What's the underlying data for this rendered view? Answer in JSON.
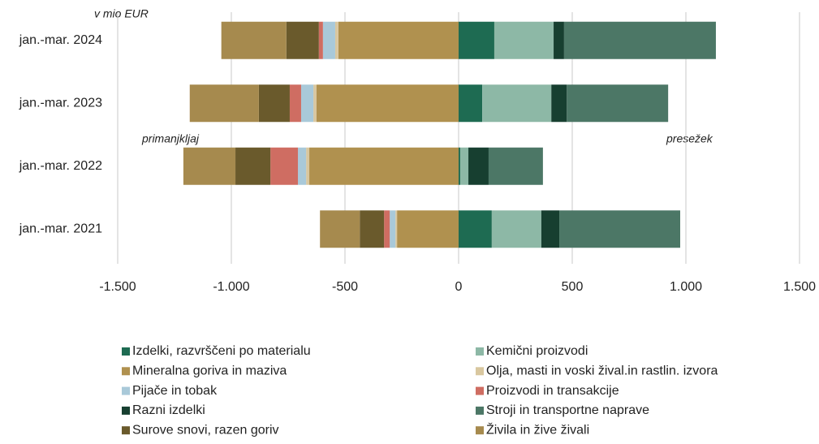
{
  "chart_data": {
    "type": "diverging_bar",
    "unit_label": "v mio EUR",
    "annotations": [
      "primanjkljaj",
      "presežek"
    ],
    "categories": [
      "jan.-mar. 2024",
      "jan.-mar. 2023",
      "jan.-mar. 2022",
      "jan.-mar. 2021"
    ],
    "series": [
      {
        "name": "Izdelki, razvrščeni po materialu",
        "color": "#1e6b52",
        "values": [
          157,
          104,
          7,
          146
        ]
      },
      {
        "name": "Kemični proizvodi",
        "color": "#8db8a6",
        "values": [
          261,
          304,
          36,
          218
        ]
      },
      {
        "name": "Mineralna goriva in maziva",
        "color": "#b0914f",
        "values": [
          -529,
          -625,
          -657,
          -271
        ]
      },
      {
        "name": "Olja, masti in voski žival.in rastlin. izvora",
        "color": "#d9c79f",
        "values": [
          -14,
          -14,
          -14,
          -7
        ]
      },
      {
        "name": "Pijače in tobak",
        "color": "#a9c9d9",
        "values": [
          -54,
          -54,
          -36,
          -25
        ]
      },
      {
        "name": "Proizvodi in transakcije",
        "color": "#cf6d62",
        "values": [
          -18,
          -50,
          -121,
          -25
        ]
      },
      {
        "name": "Razni izdelki",
        "color": "#173f30",
        "values": [
          46,
          68,
          89,
          79
        ]
      },
      {
        "name": "Stroji in transportne naprave",
        "color": "#4c7766",
        "values": [
          668,
          446,
          239,
          532
        ]
      },
      {
        "name": "Surove snovi, razen goriv",
        "color": "#6a5a2c",
        "values": [
          -143,
          -136,
          -154,
          -107
        ]
      },
      {
        "name": "Živila in žive živali",
        "color": "#a68a4e",
        "values": [
          -286,
          -304,
          -229,
          -175
        ]
      }
    ],
    "xlim": [
      -1500,
      1500
    ],
    "xticks": [
      {
        "value": -1500,
        "label": "-1.500"
      },
      {
        "value": -1000,
        "label": "-1.000"
      },
      -500,
      0,
      500,
      {
        "value": 1000,
        "label": "1.000"
      },
      {
        "value": 1500,
        "label": "1.500"
      }
    ],
    "grid": true
  }
}
